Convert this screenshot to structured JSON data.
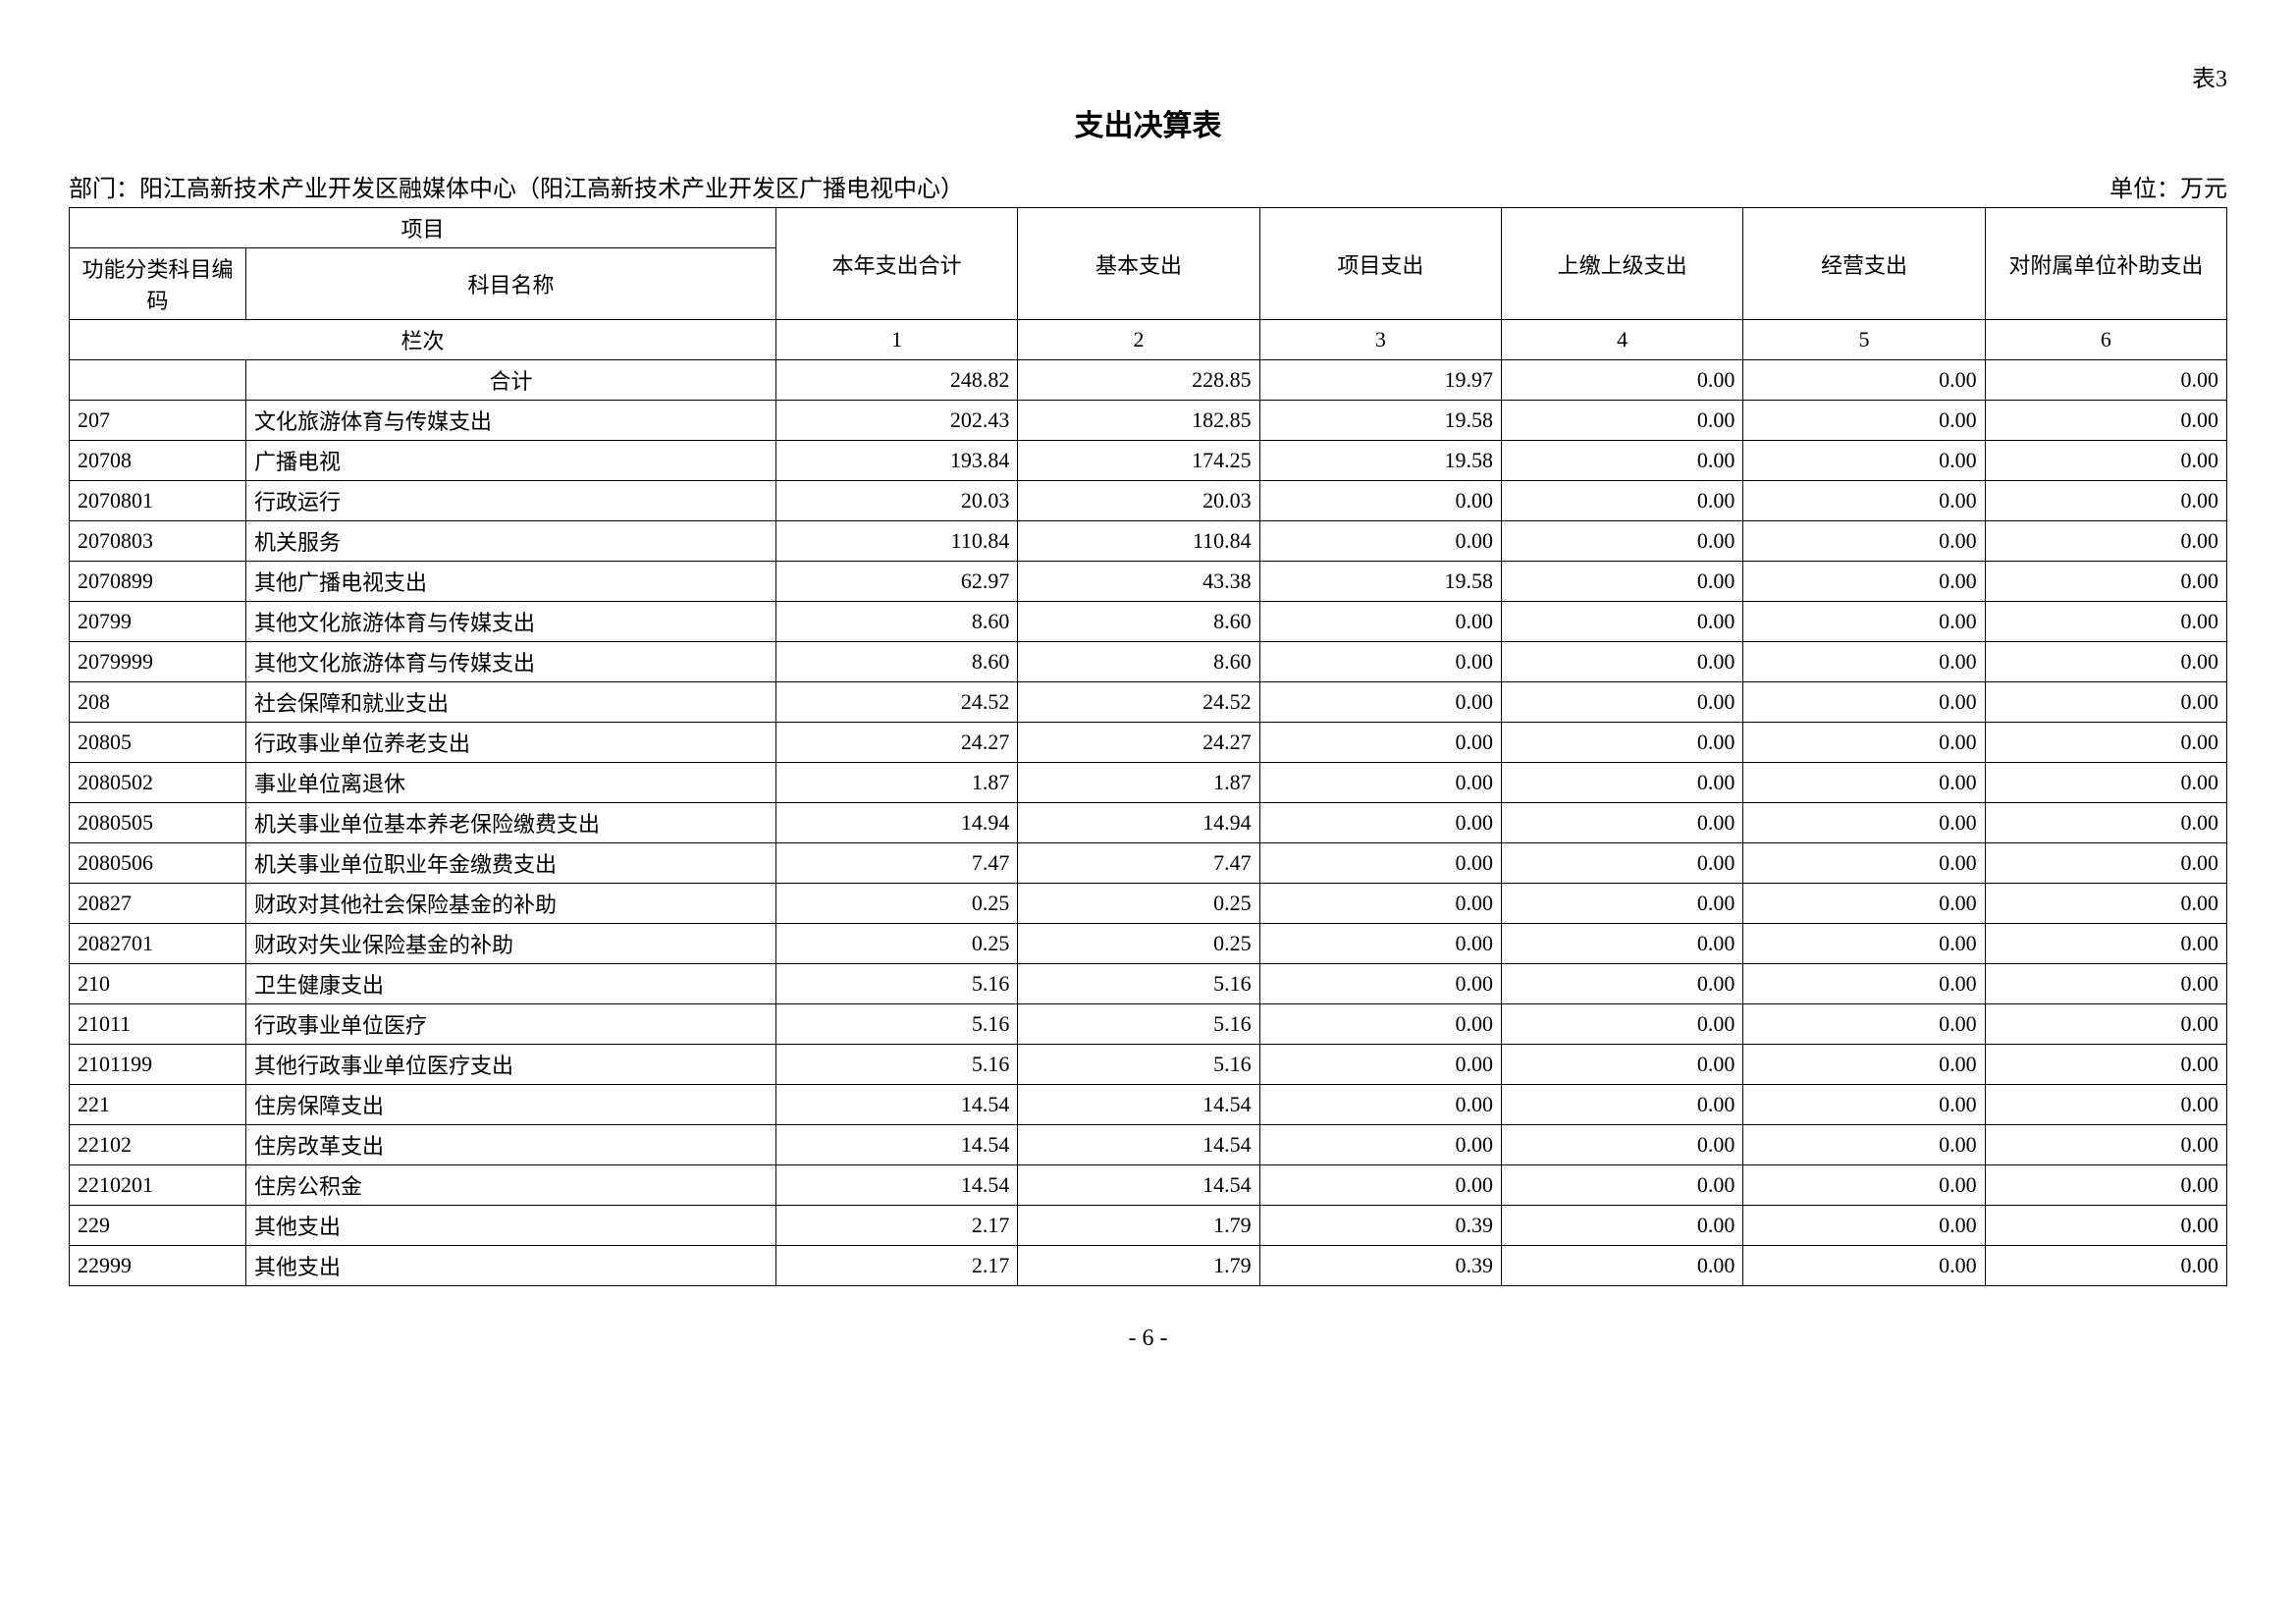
{
  "table_label": "表3",
  "title": "支出决算表",
  "department_prefix": "部门：",
  "department": "阳江高新技术产业开发区融媒体中心（阳江高新技术产业开发区广播电视中心）",
  "unit_prefix": "单位：",
  "unit": "万元",
  "headers": {
    "project": "项目",
    "code": "功能分类科目编码",
    "name": "科目名称",
    "col1": "本年支出合计",
    "col2": "基本支出",
    "col3": "项目支出",
    "col4": "上缴上级支出",
    "col5": "经营支出",
    "col6": "对附属单位补助支出"
  },
  "column_row_label": "栏次",
  "column_numbers": [
    "1",
    "2",
    "3",
    "4",
    "5",
    "6"
  ],
  "total_label": "合计",
  "rows": [
    {
      "code": "",
      "name": "合计",
      "v": [
        "248.82",
        "228.85",
        "19.97",
        "0.00",
        "0.00",
        "0.00"
      ]
    },
    {
      "code": "207",
      "name": "文化旅游体育与传媒支出",
      "v": [
        "202.43",
        "182.85",
        "19.58",
        "0.00",
        "0.00",
        "0.00"
      ]
    },
    {
      "code": "20708",
      "name": "广播电视",
      "v": [
        "193.84",
        "174.25",
        "19.58",
        "0.00",
        "0.00",
        "0.00"
      ]
    },
    {
      "code": "2070801",
      "name": "行政运行",
      "v": [
        "20.03",
        "20.03",
        "0.00",
        "0.00",
        "0.00",
        "0.00"
      ]
    },
    {
      "code": "2070803",
      "name": "机关服务",
      "v": [
        "110.84",
        "110.84",
        "0.00",
        "0.00",
        "0.00",
        "0.00"
      ]
    },
    {
      "code": "2070899",
      "name": "其他广播电视支出",
      "v": [
        "62.97",
        "43.38",
        "19.58",
        "0.00",
        "0.00",
        "0.00"
      ]
    },
    {
      "code": "20799",
      "name": "其他文化旅游体育与传媒支出",
      "v": [
        "8.60",
        "8.60",
        "0.00",
        "0.00",
        "0.00",
        "0.00"
      ]
    },
    {
      "code": "2079999",
      "name": "其他文化旅游体育与传媒支出",
      "v": [
        "8.60",
        "8.60",
        "0.00",
        "0.00",
        "0.00",
        "0.00"
      ]
    },
    {
      "code": "208",
      "name": "社会保障和就业支出",
      "v": [
        "24.52",
        "24.52",
        "0.00",
        "0.00",
        "0.00",
        "0.00"
      ]
    },
    {
      "code": "20805",
      "name": "行政事业单位养老支出",
      "v": [
        "24.27",
        "24.27",
        "0.00",
        "0.00",
        "0.00",
        "0.00"
      ]
    },
    {
      "code": "2080502",
      "name": "事业单位离退休",
      "v": [
        "1.87",
        "1.87",
        "0.00",
        "0.00",
        "0.00",
        "0.00"
      ]
    },
    {
      "code": "2080505",
      "name": "机关事业单位基本养老保险缴费支出",
      "v": [
        "14.94",
        "14.94",
        "0.00",
        "0.00",
        "0.00",
        "0.00"
      ]
    },
    {
      "code": "2080506",
      "name": "机关事业单位职业年金缴费支出",
      "v": [
        "7.47",
        "7.47",
        "0.00",
        "0.00",
        "0.00",
        "0.00"
      ]
    },
    {
      "code": "20827",
      "name": "财政对其他社会保险基金的补助",
      "v": [
        "0.25",
        "0.25",
        "0.00",
        "0.00",
        "0.00",
        "0.00"
      ]
    },
    {
      "code": "2082701",
      "name": "财政对失业保险基金的补助",
      "v": [
        "0.25",
        "0.25",
        "0.00",
        "0.00",
        "0.00",
        "0.00"
      ]
    },
    {
      "code": "210",
      "name": "卫生健康支出",
      "v": [
        "5.16",
        "5.16",
        "0.00",
        "0.00",
        "0.00",
        "0.00"
      ]
    },
    {
      "code": "21011",
      "name": "行政事业单位医疗",
      "v": [
        "5.16",
        "5.16",
        "0.00",
        "0.00",
        "0.00",
        "0.00"
      ]
    },
    {
      "code": "2101199",
      "name": "其他行政事业单位医疗支出",
      "v": [
        "5.16",
        "5.16",
        "0.00",
        "0.00",
        "0.00",
        "0.00"
      ]
    },
    {
      "code": "221",
      "name": "住房保障支出",
      "v": [
        "14.54",
        "14.54",
        "0.00",
        "0.00",
        "0.00",
        "0.00"
      ]
    },
    {
      "code": "22102",
      "name": "住房改革支出",
      "v": [
        "14.54",
        "14.54",
        "0.00",
        "0.00",
        "0.00",
        "0.00"
      ]
    },
    {
      "code": "2210201",
      "name": "住房公积金",
      "v": [
        "14.54",
        "14.54",
        "0.00",
        "0.00",
        "0.00",
        "0.00"
      ]
    },
    {
      "code": "229",
      "name": "其他支出",
      "v": [
        "2.17",
        "1.79",
        "0.39",
        "0.00",
        "0.00",
        "0.00"
      ]
    },
    {
      "code": "22999",
      "name": "其他支出",
      "v": [
        "2.17",
        "1.79",
        "0.39",
        "0.00",
        "0.00",
        "0.00"
      ]
    }
  ],
  "page_number": "- 6 -",
  "styling": {
    "background_color": "#ffffff",
    "text_color": "#000000",
    "border_color": "#000000",
    "title_fontsize": 30,
    "body_fontsize": 22,
    "meta_fontsize": 24
  }
}
